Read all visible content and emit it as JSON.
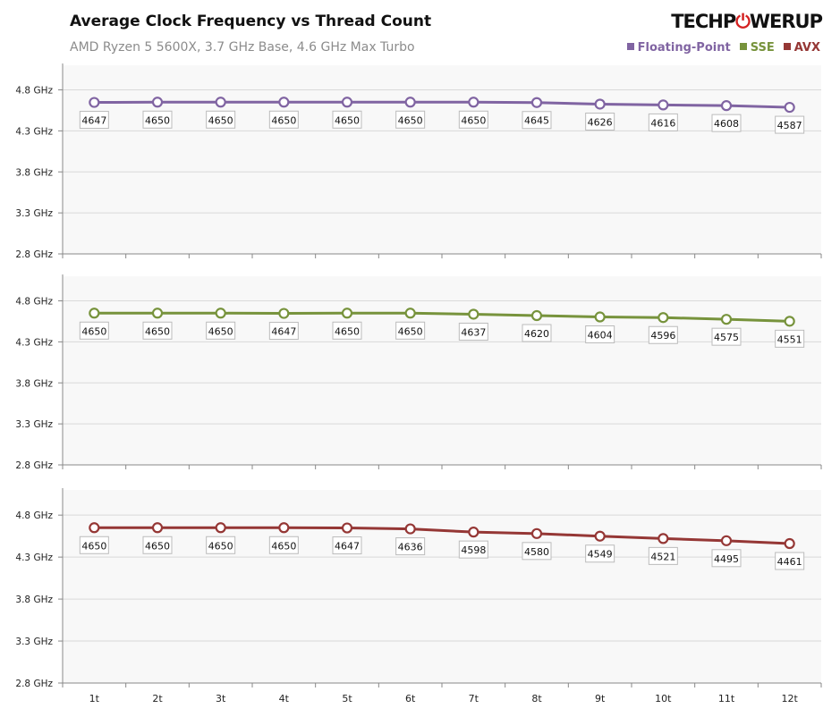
{
  "header": {
    "title": "Average Clock Frequency vs Thread Count",
    "subtitle": "AMD Ryzen 5 5600X, 3.7 GHz Base, 4.6 GHz Max Turbo",
    "logo": "TECHPOWERUP"
  },
  "chart_data": [
    {
      "type": "line",
      "ylim": [
        2.8,
        5.1
      ],
      "yticks": [
        "4.8 GHz",
        "4.3 GHz",
        "3.8 GHz",
        "3.3 GHz",
        "2.8 GHz"
      ],
      "ytick_values": [
        4.8,
        4.3,
        3.8,
        3.3,
        2.8
      ],
      "grid": true,
      "categories": [
        "1t",
        "2t",
        "3t",
        "4t",
        "5t",
        "6t",
        "7t",
        "8t",
        "9t",
        "10t",
        "11t",
        "12t"
      ],
      "series": [
        {
          "name": "Floating-Point",
          "color": "#8064a2",
          "values": [
            4647,
            4650,
            4650,
            4650,
            4650,
            4650,
            4650,
            4645,
            4626,
            4616,
            4608,
            4587
          ]
        }
      ]
    },
    {
      "type": "line",
      "ylim": [
        2.8,
        5.1
      ],
      "yticks": [
        "4.8 GHz",
        "4.3 GHz",
        "3.8 GHz",
        "3.3 GHz",
        "2.8 GHz"
      ],
      "ytick_values": [
        4.8,
        4.3,
        3.8,
        3.3,
        2.8
      ],
      "grid": true,
      "categories": [
        "1t",
        "2t",
        "3t",
        "4t",
        "5t",
        "6t",
        "7t",
        "8t",
        "9t",
        "10t",
        "11t",
        "12t"
      ],
      "series": [
        {
          "name": "SSE",
          "color": "#77933c",
          "values": [
            4650,
            4650,
            4650,
            4647,
            4650,
            4650,
            4637,
            4620,
            4604,
            4596,
            4575,
            4551
          ]
        }
      ]
    },
    {
      "type": "line",
      "ylim": [
        2.8,
        5.1
      ],
      "yticks": [
        "4.8 GHz",
        "4.3 GHz",
        "3.8 GHz",
        "3.3 GHz",
        "2.8 GHz"
      ],
      "ytick_values": [
        4.8,
        4.3,
        3.8,
        3.3,
        2.8
      ],
      "grid": true,
      "categories": [
        "1t",
        "2t",
        "3t",
        "4t",
        "5t",
        "6t",
        "7t",
        "8t",
        "9t",
        "10t",
        "11t",
        "12t"
      ],
      "series": [
        {
          "name": "AVX",
          "color": "#953735",
          "values": [
            4650,
            4650,
            4650,
            4650,
            4647,
            4636,
            4598,
            4580,
            4549,
            4521,
            4495,
            4461
          ]
        }
      ]
    }
  ],
  "legend": {
    "placement": "top-right",
    "items": [
      {
        "label": "Floating-Point",
        "color": "#8064a2"
      },
      {
        "label": "SSE",
        "color": "#77933c"
      },
      {
        "label": "AVX",
        "color": "#953735"
      }
    ]
  }
}
